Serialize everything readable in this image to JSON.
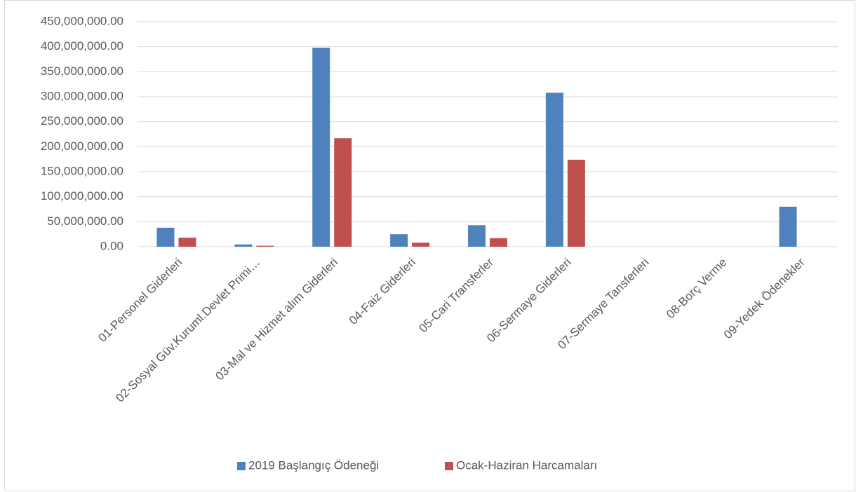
{
  "chart_data": {
    "type": "bar",
    "categories": [
      "01-Personel Giderleri",
      "02-Sosyal Güv.Kuruml.Devlet Primi…",
      "03-Mal ve Hizmet alım Giderleri",
      "04-Faiz Giderleri",
      "05-Cari Transferler",
      "06-Sermaye Giderleri",
      "07-Sermaye Tansferleri",
      "08-Borç Verme",
      "09-Yedek Ödenekler"
    ],
    "series": [
      {
        "name": "2019 Başlangıç Ödeneği",
        "color": "#4f81bd",
        "values": [
          38000000,
          4500000,
          398000000,
          25000000,
          43000000,
          308000000,
          0,
          0,
          80000000
        ]
      },
      {
        "name": "Ocak-Haziran Harcamaları",
        "color": "#c0504d",
        "values": [
          18000000,
          2000000,
          217000000,
          8000000,
          17000000,
          174000000,
          0,
          0,
          0
        ]
      }
    ],
    "ylim": [
      0,
      450000000
    ],
    "yticks": [
      {
        "value": 0,
        "label": "0.00"
      },
      {
        "value": 50000000,
        "label": "50,000,000.00"
      },
      {
        "value": 100000000,
        "label": "100,000,000.00"
      },
      {
        "value": 150000000,
        "label": "150,000,000.00"
      },
      {
        "value": 200000000,
        "label": "200,000,000.00"
      },
      {
        "value": 250000000,
        "label": "250,000,000.00"
      },
      {
        "value": 300000000,
        "label": "300,000,000.00"
      },
      {
        "value": 350000000,
        "label": "350,000,000.00"
      },
      {
        "value": 400000000,
        "label": "400,000,000.00"
      },
      {
        "value": 450000000,
        "label": "450,000,000.00"
      }
    ],
    "grid": true,
    "legend": "bottom"
  }
}
